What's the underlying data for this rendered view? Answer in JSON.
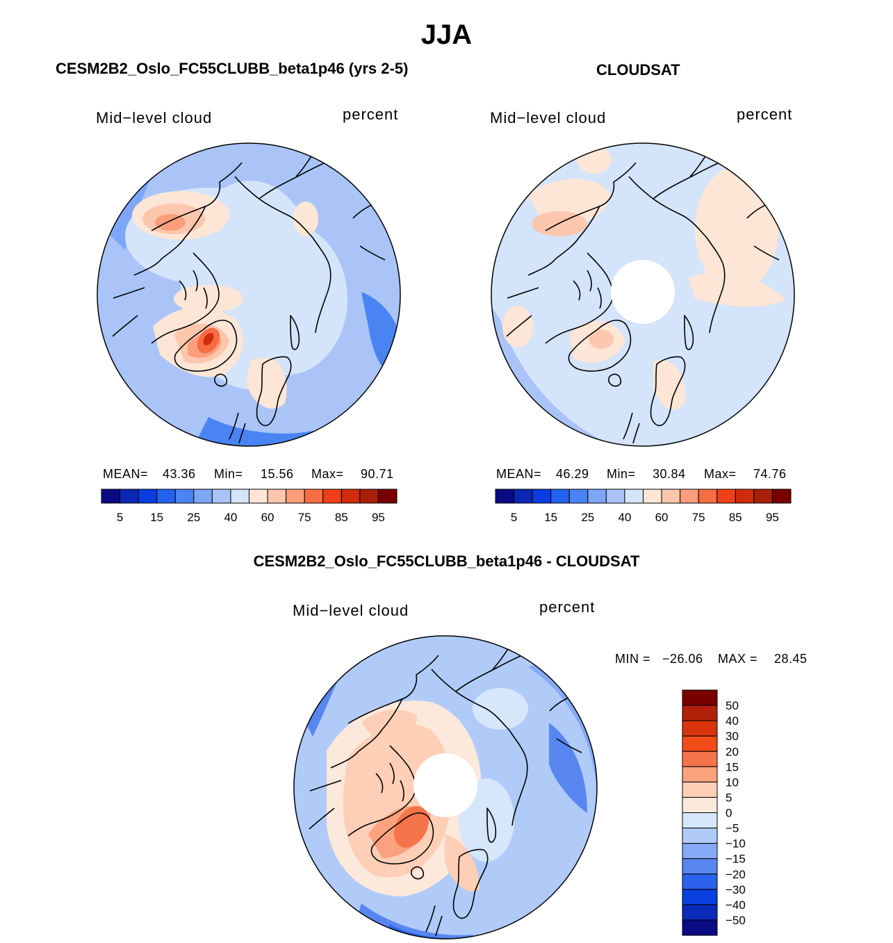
{
  "title": "JJA",
  "panels": {
    "model": {
      "heading": "CESM2B2_Oslo_FC55CLUBB_beta1p46 (yrs 2-5)",
      "variable": "Mid−level cloud",
      "units": "percent",
      "stats": {
        "mean_label": "MEAN=",
        "mean": "43.36",
        "min_label": "Min=",
        "min": "15.56",
        "max_label": "Max=",
        "max": "90.71"
      }
    },
    "obs": {
      "heading": "CLOUDSAT",
      "variable": "Mid−level cloud",
      "units": "percent",
      "stats": {
        "mean_label": "MEAN=",
        "mean": "46.29",
        "min_label": "Min=",
        "min": "30.84",
        "max_label": "Max=",
        "max": "74.76"
      }
    },
    "diff": {
      "heading": "CESM2B2_Oslo_FC55CLUBB_beta1p46 - CLOUDSAT",
      "variable": "Mid−level cloud",
      "units": "percent",
      "stats": {
        "min_label": "MIN =",
        "min": "−26.06",
        "max_label": "MAX =",
        "max": "28.45"
      }
    }
  },
  "chart_data": [
    {
      "type": "heatmap",
      "projection": "north polar stereographic",
      "title": "CESM2B2_Oslo_FC55CLUBB_beta1p46 (yrs 2-5)",
      "variable": "Mid-level cloud",
      "units": "percent",
      "mean": 43.36,
      "min": 15.56,
      "max": 90.71,
      "colorbar_levels": [
        5,
        10,
        15,
        20,
        25,
        30,
        40,
        50,
        60,
        70,
        75,
        80,
        85,
        90,
        95
      ],
      "colorbar_tick_labels": [
        "5",
        "15",
        "25",
        "40",
        "60",
        "75",
        "85",
        "95"
      ]
    },
    {
      "type": "heatmap",
      "projection": "north polar stereographic",
      "title": "CLOUDSAT",
      "variable": "Mid-level cloud",
      "units": "percent",
      "mean": 46.29,
      "min": 30.84,
      "max": 74.76,
      "missing_region": "pole",
      "colorbar_levels": [
        5,
        10,
        15,
        20,
        25,
        30,
        40,
        50,
        60,
        70,
        75,
        80,
        85,
        90,
        95
      ],
      "colorbar_tick_labels": [
        "5",
        "15",
        "25",
        "40",
        "60",
        "75",
        "85",
        "95"
      ]
    },
    {
      "type": "heatmap",
      "projection": "north polar stereographic",
      "title": "CESM2B2_Oslo_FC55CLUBB_beta1p46 - CLOUDSAT",
      "variable": "Mid-level cloud",
      "units": "percent",
      "min": -26.06,
      "max": 28.45,
      "missing_region": "pole",
      "colorbar_levels": [
        -50,
        -40,
        -30,
        -20,
        -15,
        -10,
        -5,
        0,
        5,
        10,
        15,
        20,
        30,
        40,
        50
      ],
      "colorbar_tick_labels": [
        "50",
        "40",
        "30",
        "20",
        "15",
        "10",
        "5",
        "0",
        "−5",
        "−10",
        "−15",
        "−20",
        "−30",
        "−40",
        "−50"
      ]
    }
  ],
  "colors": {
    "abs_scale": [
      "#0a0a82",
      "#0a28b4",
      "#0a3ce1",
      "#2362ee",
      "#4a84f2",
      "#7ea6f6",
      "#aac4f8",
      "#d4e4fa",
      "#fde6d6",
      "#fcc7ad",
      "#fa9e7b",
      "#f66c45",
      "#ed4016",
      "#d02b0a",
      "#a8200a",
      "#7a0000"
    ],
    "diff_scale_top_to_bottom": [
      "#7a0000",
      "#b3200a",
      "#d9340c",
      "#f24c18",
      "#f5744a",
      "#fba17e",
      "#fdcfb6",
      "#fde8dc",
      "#d6e6fb",
      "#b0cbf8",
      "#86aaf5",
      "#5886f0",
      "#2c62eb",
      "#0a3fe0",
      "#0a2ab9",
      "#0a0a85"
    ]
  }
}
